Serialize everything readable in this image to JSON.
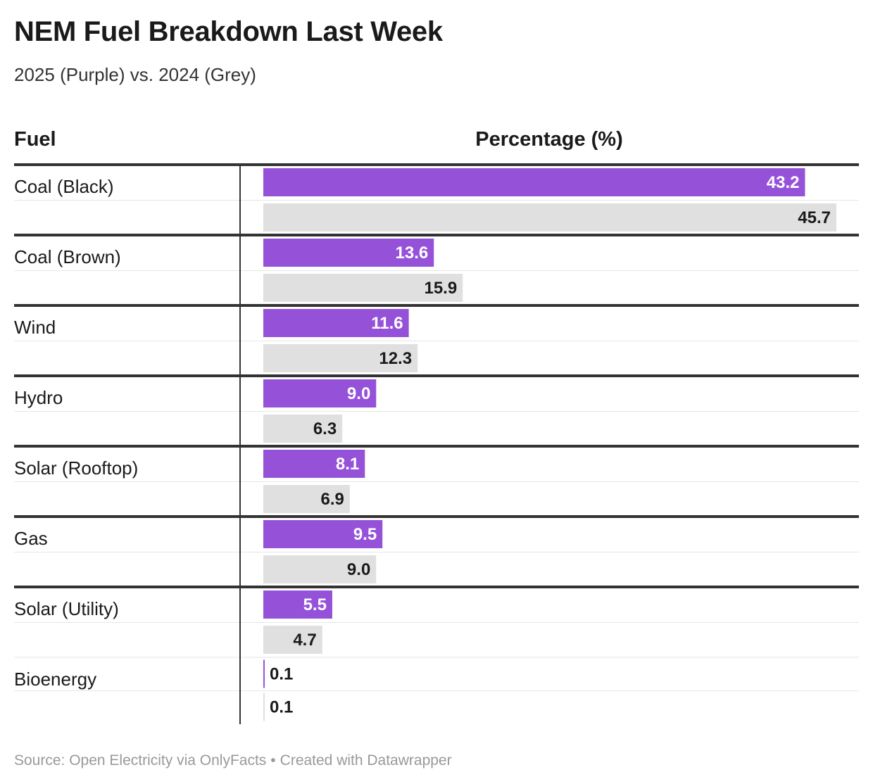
{
  "title": "NEM Fuel Breakdown Last Week",
  "subtitle": "2025 (Purple) vs. 2024 (Grey)",
  "columns": {
    "fuel": "Fuel",
    "percentage": "Percentage (%)"
  },
  "footer": {
    "source": "Source: Open Electricity via OnlyFacts",
    "separator": "•",
    "credit": "Created with Datawrapper"
  },
  "colors": {
    "year_2025": "#9552d9",
    "year_2024": "#e0e0e0",
    "text_dark": "#1a1a1a",
    "text_light": "#ffffff"
  },
  "chart_data": {
    "type": "bar",
    "orientation": "horizontal",
    "categories": [
      "Coal (Black)",
      "Coal (Brown)",
      "Wind",
      "Hydro",
      "Solar (Rooftop)",
      "Gas",
      "Solar (Utility)",
      "Bioenergy"
    ],
    "series": [
      {
        "values": [
          43.2,
          13.6,
          11.6,
          9.0,
          8.1,
          9.5,
          5.5,
          0.1
        ],
        "color": "#9552d9"
      },
      {
        "values": [
          45.7,
          15.9,
          12.3,
          6.3,
          6.9,
          9.0,
          4.7,
          0.1
        ],
        "color": "#e0e0e0"
      }
    ],
    "ylabel": "Percentage (%)",
    "xlim": [
      0,
      45.7
    ]
  }
}
